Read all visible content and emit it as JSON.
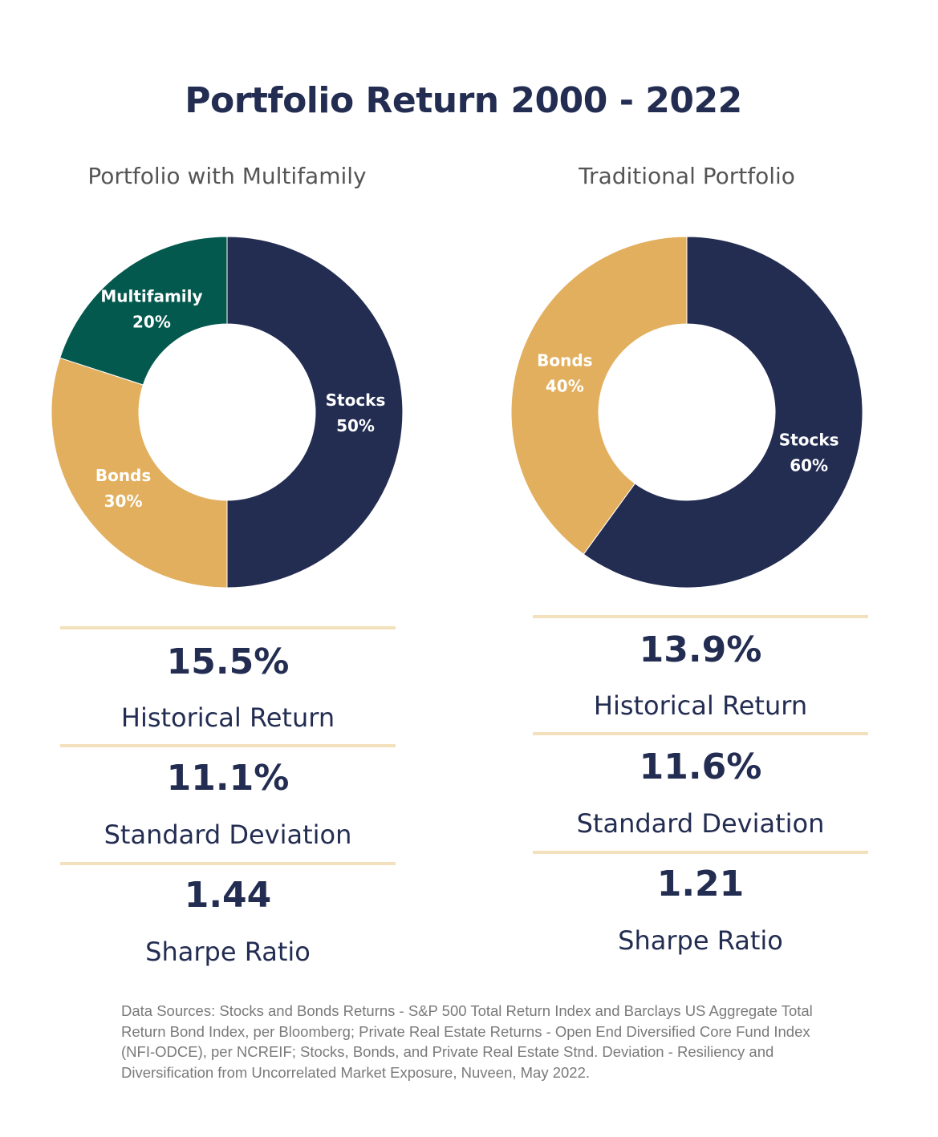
{
  "title": "Portfolio Return 2000 - 2022",
  "colors": {
    "stocks": "#232d52",
    "bonds": "#e2af5e",
    "multifamily": "#03594e",
    "title": "#232d52",
    "rule": "#f3e1bd"
  },
  "chart_data": [
    {
      "type": "pie",
      "title": "Portfolio with Multifamily",
      "slices": [
        {
          "label": "Stocks",
          "value": 50,
          "display": "50%",
          "color": "#232d52"
        },
        {
          "label": "Bonds",
          "value": 30,
          "display": "30%",
          "color": "#e2af5e"
        },
        {
          "label": "Multifamily",
          "value": 20,
          "display": "20%",
          "color": "#03594e"
        }
      ],
      "stats": [
        {
          "value": "15.5%",
          "label": "Historical Return"
        },
        {
          "value": "11.1%",
          "label": "Standard Deviation"
        },
        {
          "value": "1.44",
          "label": "Sharpe Ratio"
        }
      ]
    },
    {
      "type": "pie",
      "title": "Traditional Portfolio",
      "slices": [
        {
          "label": "Stocks",
          "value": 60,
          "display": "60%",
          "color": "#232d52"
        },
        {
          "label": "Bonds",
          "value": 40,
          "display": "40%",
          "color": "#e2af5e"
        }
      ],
      "stats": [
        {
          "value": "13.9%",
          "label": "Historical Return"
        },
        {
          "value": "11.6%",
          "label": "Standard Deviation"
        },
        {
          "value": "1.21",
          "label": "Sharpe Ratio"
        }
      ]
    }
  ],
  "footnote": "Data Sources: Stocks and Bonds Returns - S&P 500 Total Return Index and Barclays US Aggregate Total Return Bond Index, per Bloomberg; Private Real Estate Returns - Open End Diversified Core Fund Index (NFI-ODCE), per NCREIF; Stocks, Bonds, and Private Real Estate Stnd. Deviation - Resiliency and Diversification from Uncorrelated Market Exposure, Nuveen, May 2022."
}
